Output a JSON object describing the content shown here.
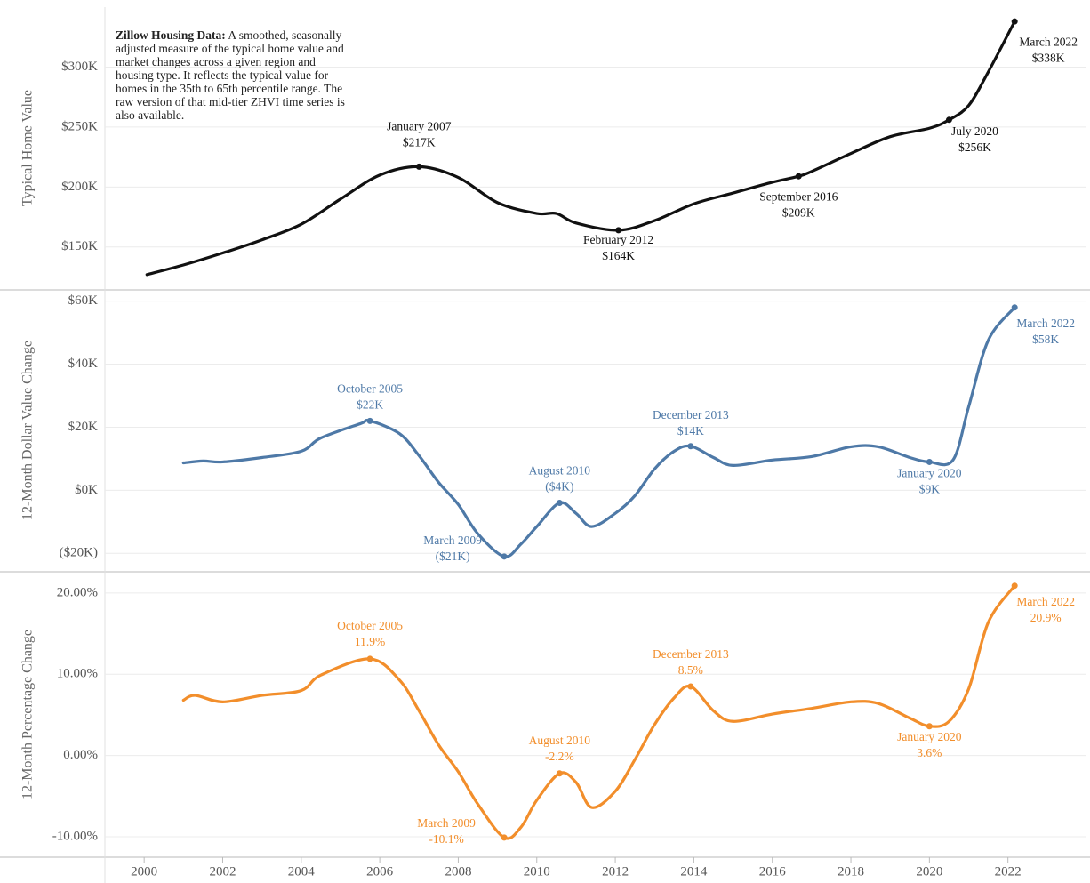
{
  "chart_data": [
    {
      "type": "line",
      "ylabel": "Typical Home Value",
      "color": "#111111",
      "grid": true,
      "note_title": "Zillow Housing Data:",
      "note": "A smoothed, seasonally adjusted measure of the typical home value and market changes across a given region and housing type. It reflects the typical value for homes in the 35th to 65th percentile range. The raw version of that mid-tier ZHVI time series is also available.",
      "xlim": [
        1999,
        2024
      ],
      "ylim": [
        115000,
        350000
      ],
      "yticks": [
        {
          "value": 150000,
          "label": "$150K"
        },
        {
          "value": 200000,
          "label": "$200K"
        },
        {
          "value": 250000,
          "label": "$250K"
        },
        {
          "value": 300000,
          "label": "$300K"
        }
      ],
      "x": [
        2000.07,
        2001,
        2002,
        2003,
        2004,
        2005,
        2006,
        2007,
        2008,
        2009,
        2010,
        2010.5,
        2011,
        2012.08,
        2013,
        2014,
        2015,
        2016,
        2016.67,
        2017,
        2018,
        2019,
        2020,
        2020.5,
        2021,
        2021.5,
        2022.17
      ],
      "values": [
        127000,
        135000,
        145000,
        156000,
        169000,
        190000,
        210000,
        217000,
        208000,
        187000,
        178000,
        178000,
        170000,
        164000,
        172000,
        186000,
        195000,
        204000,
        209000,
        213000,
        228000,
        242000,
        249000,
        256000,
        268000,
        296000,
        338000
      ],
      "annotations": [
        {
          "x": 2007,
          "value": 217000,
          "label": "January 2007",
          "value_label": "$217K"
        },
        {
          "x": 2012.08,
          "value": 164000,
          "label": "February 2012",
          "value_label": "$164K"
        },
        {
          "x": 2016.67,
          "value": 209000,
          "label": "September 2016",
          "value_label": "$209K"
        },
        {
          "x": 2020.5,
          "value": 256000,
          "label": "July 2020",
          "value_label": "$256K"
        },
        {
          "x": 2022.17,
          "value": 338000,
          "label": "March 2022",
          "value_label": "$338K"
        }
      ]
    },
    {
      "type": "line",
      "ylabel": "12-Month Dollar Value Change",
      "color": "#4e79a7",
      "grid": true,
      "xlim": [
        1999,
        2024
      ],
      "ylim": [
        -25000,
        63000
      ],
      "yticks": [
        {
          "value": -20000,
          "label": "($20K)"
        },
        {
          "value": 0,
          "label": "$0K"
        },
        {
          "value": 20000,
          "label": "$20K"
        },
        {
          "value": 40000,
          "label": "$40K"
        },
        {
          "value": 60000,
          "label": "$60K"
        }
      ],
      "x": [
        2001,
        2001.5,
        2002,
        2003,
        2004,
        2004.5,
        2005.5,
        2005.75,
        2006.5,
        2007,
        2007.5,
        2008,
        2008.5,
        2009.17,
        2009.6,
        2010,
        2010.58,
        2011,
        2011.4,
        2012,
        2012.5,
        2013,
        2013.5,
        2013.92,
        2014.5,
        2015,
        2016,
        2017,
        2018,
        2018.7,
        2019.5,
        2020,
        2020.6,
        2021,
        2021.5,
        2022.17
      ],
      "values": [
        8700,
        9300,
        9000,
        10400,
        12400,
        16600,
        21100,
        22000,
        18000,
        11000,
        2500,
        -4500,
        -13800,
        -21000,
        -17000,
        -11500,
        -4000,
        -7300,
        -11500,
        -7300,
        -1700,
        6800,
        12400,
        14000,
        10400,
        7900,
        9600,
        10700,
        13800,
        13800,
        10400,
        9000,
        9600,
        26500,
        47600,
        58000
      ],
      "annotations": [
        {
          "x": 2005.75,
          "value": 22000,
          "label": "October 2005",
          "value_label": "$22K"
        },
        {
          "x": 2009.17,
          "value": -21000,
          "label": "March 2009",
          "value_label": "($21K)"
        },
        {
          "x": 2010.58,
          "value": -4000,
          "label": "August 2010",
          "value_label": "($4K)"
        },
        {
          "x": 2013.92,
          "value": 14000,
          "label": "December 2013",
          "value_label": "$14K"
        },
        {
          "x": 2020,
          "value": 9000,
          "label": "January 2020",
          "value_label": "$9K"
        },
        {
          "x": 2022.17,
          "value": 58000,
          "label": "March 2022",
          "value_label": "$58K"
        }
      ]
    },
    {
      "type": "line",
      "ylabel": "12-Month Percentage Change",
      "color": "#f28e2b",
      "grid": true,
      "xlim": [
        1999,
        2024
      ],
      "ylim": [
        -12.3,
        22.4
      ],
      "yticks": [
        {
          "value": -10,
          "label": "-10.00%"
        },
        {
          "value": 0,
          "label": "0.00%"
        },
        {
          "value": 10,
          "label": "10.00%"
        },
        {
          "value": 20,
          "label": "20.00%"
        }
      ],
      "xticks": [
        2000,
        2002,
        2004,
        2006,
        2008,
        2010,
        2012,
        2014,
        2016,
        2018,
        2020,
        2022
      ],
      "x": [
        2001,
        2001.3,
        2002,
        2003,
        2004,
        2004.5,
        2005.75,
        2006.5,
        2007,
        2007.5,
        2008,
        2008.5,
        2009.17,
        2009.6,
        2010,
        2010.58,
        2011,
        2011.4,
        2012,
        2012.5,
        2013,
        2013.5,
        2013.92,
        2014.5,
        2015,
        2016,
        2017,
        2018,
        2018.7,
        2019.5,
        2020,
        2020.5,
        2021,
        2021.5,
        2022.17
      ],
      "values": [
        6.8,
        7.4,
        6.6,
        7.4,
        8.0,
        9.9,
        11.9,
        9.3,
        5.5,
        1.3,
        -2.0,
        -6.0,
        -10.1,
        -8.8,
        -5.5,
        -2.2,
        -3.3,
        -6.4,
        -4.4,
        -0.5,
        3.8,
        7.1,
        8.5,
        5.5,
        4.2,
        5.1,
        5.8,
        6.6,
        6.4,
        4.6,
        3.6,
        4.2,
        8.2,
        16.4,
        20.9
      ],
      "annotations": [
        {
          "x": 2005.75,
          "value": 11.9,
          "label": "October 2005",
          "value_label": "11.9%"
        },
        {
          "x": 2009.17,
          "value": -10.1,
          "label": "March 2009",
          "value_label": "-10.1%"
        },
        {
          "x": 2010.58,
          "value": -2.2,
          "label": "August 2010",
          "value_label": "-2.2%"
        },
        {
          "x": 2013.92,
          "value": 8.5,
          "label": "December 2013",
          "value_label": "8.5%"
        },
        {
          "x": 2020,
          "value": 3.6,
          "label": "January 2020",
          "value_label": "3.6%"
        },
        {
          "x": 2022.17,
          "value": 20.9,
          "label": "March 2022",
          "value_label": "20.9%"
        }
      ]
    }
  ]
}
